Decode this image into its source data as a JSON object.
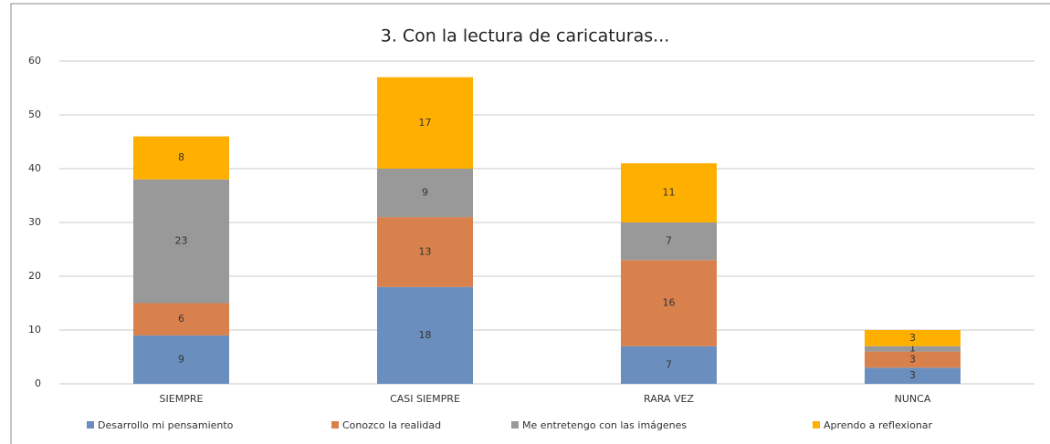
{
  "chart_data": {
    "type": "stacked_bar",
    "title": "3.  Con la lectura de caricaturas...",
    "categories": [
      "SIEMPRE",
      "CASI SIEMPRE",
      "RARA VEZ",
      "NUNCA"
    ],
    "series": [
      {
        "name": "Desarrollo mi pensamiento",
        "color": "#6a8fbf",
        "values": [
          9,
          18,
          7,
          3
        ]
      },
      {
        "name": "Conozco la realidad",
        "color": "#d9814c",
        "values": [
          6,
          13,
          16,
          3
        ]
      },
      {
        "name": "Me entretengo con las imágenes",
        "color": "#999999",
        "values": [
          23,
          9,
          7,
          1
        ]
      },
      {
        "name": "Aprendo a reflexionar",
        "color": "#ffaf00",
        "values": [
          8,
          17,
          11,
          3
        ]
      }
    ],
    "ylim": [
      0,
      60
    ],
    "yticks": [
      0,
      10,
      20,
      30,
      40,
      50,
      60
    ],
    "grid": true,
    "legend": "bottom"
  }
}
